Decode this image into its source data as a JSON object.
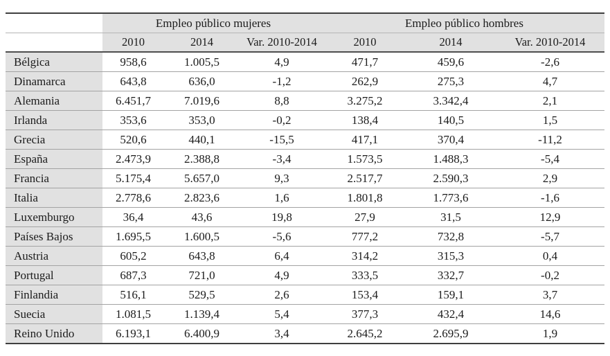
{
  "table": {
    "groups": [
      {
        "label": "Empleo público mujeres"
      },
      {
        "label": "Empleo público hombres"
      }
    ],
    "columns": [
      "2010",
      "2014",
      "Var. 2010-2014",
      "2010",
      "2014",
      "Var. 2010-2014"
    ],
    "rows": [
      {
        "country": "Bélgica",
        "values": [
          "958,6",
          "1.005,5",
          "4,9",
          "471,7",
          "459,6",
          "-2,6"
        ]
      },
      {
        "country": "Dinamarca",
        "values": [
          "643,8",
          "636,0",
          "-1,2",
          "262,9",
          "275,3",
          "4,7"
        ]
      },
      {
        "country": "Alemania",
        "values": [
          "6.451,7",
          "7.019,6",
          "8,8",
          "3.275,2",
          "3.342,4",
          "2,1"
        ]
      },
      {
        "country": "Irlanda",
        "values": [
          "353,6",
          "353,0",
          "-0,2",
          "138,4",
          "140,5",
          "1,5"
        ]
      },
      {
        "country": "Grecia",
        "values": [
          "520,6",
          "440,1",
          "-15,5",
          "417,1",
          "370,4",
          "-11,2"
        ]
      },
      {
        "country": "España",
        "values": [
          "2.473,9",
          "2.388,8",
          "-3,4",
          "1.573,5",
          "1.488,3",
          "-5,4"
        ]
      },
      {
        "country": "Francia",
        "values": [
          "5.175,4",
          "5.657,0",
          "9,3",
          "2.517,7",
          "2.590,3",
          "2,9"
        ]
      },
      {
        "country": "Italia",
        "values": [
          "2.778,6",
          "2.823,6",
          "1,6",
          "1.801,8",
          "1.773,6",
          "-1,6"
        ]
      },
      {
        "country": "Luxemburgo",
        "values": [
          "36,4",
          "43,6",
          "19,8",
          "27,9",
          "31,5",
          "12,9"
        ]
      },
      {
        "country": "Países Bajos",
        "values": [
          "1.695,5",
          "1.600,5",
          "-5,6",
          "777,2",
          "732,8",
          "-5,7"
        ]
      },
      {
        "country": "Austria",
        "values": [
          "605,2",
          "643,8",
          "6,4",
          "314,2",
          "315,3",
          "0,4"
        ]
      },
      {
        "country": "Portugal",
        "values": [
          "687,3",
          "721,0",
          "4,9",
          "333,5",
          "332,7",
          "-0,2"
        ]
      },
      {
        "country": "Finlandia",
        "values": [
          "516,1",
          "529,5",
          "2,6",
          "153,4",
          "159,1",
          "3,7"
        ]
      },
      {
        "country": "Suecia",
        "values": [
          "1.081,5",
          "1.139,4",
          "5,4",
          "377,3",
          "432,4",
          "14,6"
        ]
      },
      {
        "country": "Reino Unido",
        "values": [
          "6.193,1",
          "6.400,9",
          "3,4",
          "2.645,2",
          "2.695,9",
          "1,9"
        ]
      }
    ]
  },
  "colors": {
    "header_fill": "#e1e1e1",
    "outer_border": "#3f3f3f",
    "row_line": "#a3a3a3",
    "text": "#1b1b1b"
  },
  "chart_data": {
    "type": "table",
    "title": "",
    "column_groups": [
      "Empleo público mujeres",
      "Empleo público hombres"
    ],
    "columns": [
      "2010",
      "2014",
      "Var. 2010-2014",
      "2010",
      "2014",
      "Var. 2010-2014"
    ],
    "row_header": "country"
  }
}
